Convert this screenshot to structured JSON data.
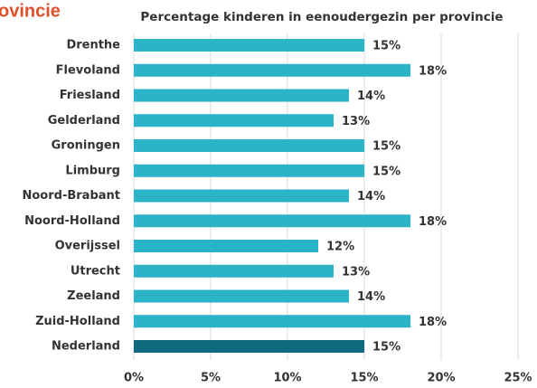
{
  "chart_data": {
    "type": "barh",
    "annotation": "ovincie",
    "title": "Percentage kinderen in eenoudergezin per provincie",
    "categories": [
      "Drenthe",
      "Flevoland",
      "Friesland",
      "Gelderland",
      "Groningen",
      "Limburg",
      "Noord-Brabant",
      "Noord-Holland",
      "Overijssel",
      "Utrecht",
      "Zeeland",
      "Zuid-Holland",
      "Nederland"
    ],
    "values": [
      15,
      18,
      14,
      13,
      15,
      15,
      14,
      18,
      12,
      13,
      14,
      18,
      15
    ],
    "value_labels": [
      "15%",
      "18%",
      "14%",
      "13%",
      "15%",
      "15%",
      "14%",
      "18%",
      "12%",
      "13%",
      "14%",
      "18%",
      "15%"
    ],
    "colors": [
      "#2bb3c7",
      "#2bb3c7",
      "#2bb3c7",
      "#2bb3c7",
      "#2bb3c7",
      "#2bb3c7",
      "#2bb3c7",
      "#2bb3c7",
      "#2bb3c7",
      "#2bb3c7",
      "#2bb3c7",
      "#2bb3c7",
      "#0f6a80"
    ],
    "xlim": [
      0,
      25
    ],
    "xticks": [
      {
        "value": 0,
        "label": "0%"
      },
      {
        "value": 5,
        "label": "5%"
      },
      {
        "value": 10,
        "label": "10%"
      },
      {
        "value": 15,
        "label": "15%"
      },
      {
        "value": 20,
        "label": "20%"
      },
      {
        "value": 25,
        "label": "25%"
      }
    ],
    "grid": true
  }
}
